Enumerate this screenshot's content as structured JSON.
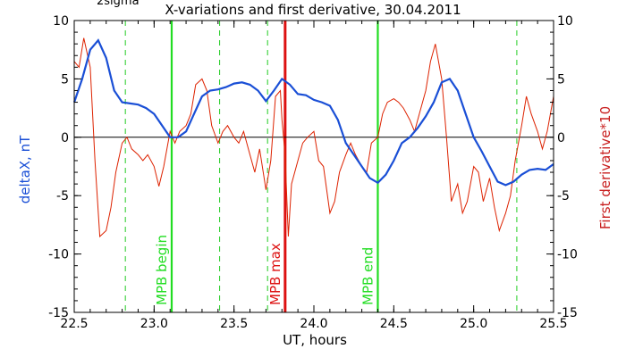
{
  "chart_data": {
    "type": "line",
    "title": "X-variations and first derivative, 30.04.2011",
    "corner_label": "2sigma",
    "xlabel": "UT, hours",
    "ylabel_left": "deltaX, nT",
    "ylabel_right": "First derivative*10",
    "xlim": [
      22.5,
      25.5
    ],
    "ylim": [
      -15,
      10
    ],
    "x_ticks": [
      "22.5",
      "23.0",
      "23.5",
      "24.0",
      "24.5",
      "25.0",
      "25.5"
    ],
    "x_tick_values": [
      22.5,
      23.0,
      23.5,
      24.0,
      24.5,
      25.0,
      25.5
    ],
    "y_ticks_left": [
      "10",
      "5",
      "0",
      "-5",
      "-10",
      "-15"
    ],
    "y_ticks_right": [
      "10",
      "5",
      "0",
      "-5",
      "-10",
      "-15"
    ],
    "y_tick_values": [
      10,
      5,
      0,
      -5,
      -10,
      -15
    ],
    "zero_line": 0,
    "colors": {
      "deltaX": "#1a4fd6",
      "derivative": "#dd2200",
      "mpb_green": "#22dd22",
      "mpb_red": "#dd1111",
      "dashed_green": "#22cc22"
    },
    "dashed_lines": [
      22.82,
      23.41,
      23.71,
      25.27
    ],
    "markers": [
      {
        "x": 23.11,
        "label": "MPB begin",
        "color": "#22dd22"
      },
      {
        "x": 23.82,
        "label": "MPB max",
        "color": "#dd1111"
      },
      {
        "x": 24.4,
        "label": "MPB end",
        "color": "#22dd22"
      }
    ],
    "series": [
      {
        "key": "deltaX",
        "x": [
          22.5,
          22.55,
          22.6,
          22.65,
          22.7,
          22.75,
          22.8,
          22.85,
          22.9,
          22.95,
          23.0,
          23.05,
          23.1,
          23.15,
          23.2,
          23.25,
          23.3,
          23.35,
          23.4,
          23.45,
          23.5,
          23.55,
          23.6,
          23.65,
          23.7,
          23.75,
          23.8,
          23.85,
          23.9,
          23.95,
          24.0,
          24.05,
          24.1,
          24.15,
          24.2,
          24.25,
          24.3,
          24.35,
          24.4,
          24.45,
          24.5,
          24.55,
          24.6,
          24.65,
          24.7,
          24.75,
          24.8,
          24.85,
          24.9,
          24.95,
          25.0,
          25.05,
          25.1,
          25.15,
          25.2,
          25.25,
          25.3,
          25.35,
          25.4,
          25.45,
          25.5
        ],
        "y": [
          3.0,
          5.0,
          7.5,
          8.3,
          6.8,
          4.0,
          3.0,
          2.9,
          2.8,
          2.5,
          2.0,
          1.0,
          0.0,
          0.0,
          0.5,
          2.0,
          3.5,
          4.0,
          4.1,
          4.3,
          4.6,
          4.7,
          4.5,
          4.0,
          3.1,
          4.0,
          5.0,
          4.5,
          3.7,
          3.6,
          3.2,
          3.0,
          2.7,
          1.5,
          -0.5,
          -1.5,
          -2.5,
          -3.5,
          -3.9,
          -3.2,
          -2.0,
          -0.5,
          0.0,
          0.8,
          1.8,
          3.0,
          4.7,
          5.0,
          4.0,
          2.0,
          0.0,
          -1.2,
          -2.5,
          -3.8,
          -4.1,
          -3.8,
          -3.2,
          -2.8,
          -2.7,
          -2.8,
          -2.3
        ]
      },
      {
        "key": "derivative",
        "x": [
          22.5,
          22.53,
          22.56,
          22.6,
          22.63,
          22.66,
          22.7,
          22.73,
          22.76,
          22.8,
          22.83,
          22.86,
          22.9,
          22.93,
          22.96,
          23.0,
          23.03,
          23.06,
          23.1,
          23.13,
          23.16,
          23.2,
          23.23,
          23.26,
          23.3,
          23.33,
          23.36,
          23.4,
          23.43,
          23.46,
          23.5,
          23.53,
          23.56,
          23.6,
          23.63,
          23.66,
          23.7,
          23.73,
          23.76,
          23.79,
          23.8,
          23.82,
          23.84,
          23.86,
          23.9,
          23.93,
          23.96,
          24.0,
          24.03,
          24.06,
          24.1,
          24.13,
          24.16,
          24.2,
          24.23,
          24.26,
          24.3,
          24.33,
          24.36,
          24.4,
          24.43,
          24.46,
          24.5,
          24.53,
          24.56,
          24.6,
          24.63,
          24.66,
          24.7,
          24.73,
          24.76,
          24.8,
          24.83,
          24.86,
          24.9,
          24.93,
          24.96,
          25.0,
          25.03,
          25.06,
          25.1,
          25.13,
          25.16,
          25.2,
          25.23,
          25.26,
          25.3,
          25.33,
          25.36,
          25.4,
          25.43,
          25.46,
          25.5
        ],
        "y": [
          6.5,
          6.0,
          8.5,
          6.0,
          -2.0,
          -8.5,
          -8.0,
          -6.0,
          -3.0,
          -0.5,
          0.0,
          -1.0,
          -1.5,
          -2.0,
          -1.5,
          -2.5,
          -4.2,
          -2.5,
          0.5,
          -0.5,
          0.5,
          1.0,
          2.0,
          4.5,
          5.0,
          4.0,
          1.0,
          -0.5,
          0.5,
          1.0,
          0.0,
          -0.5,
          0.5,
          -1.5,
          -3.0,
          -1.0,
          -4.5,
          -2.0,
          3.5,
          4.0,
          1.5,
          -1.5,
          -8.5,
          -4.0,
          -2.0,
          -0.5,
          0.0,
          0.5,
          -2.0,
          -2.5,
          -6.5,
          -5.5,
          -3.0,
          -1.5,
          -0.5,
          -1.5,
          -2.5,
          -3.0,
          -0.5,
          0.0,
          2.0,
          3.0,
          3.3,
          3.0,
          2.5,
          1.5,
          0.5,
          2.0,
          4.0,
          6.5,
          8.0,
          5.0,
          0.0,
          -5.5,
          -4.0,
          -6.5,
          -5.5,
          -2.5,
          -3.0,
          -5.5,
          -3.5,
          -6.0,
          -8.0,
          -6.5,
          -5.0,
          -2.0,
          1.0,
          3.5,
          2.0,
          0.5,
          -1.0,
          0.5,
          3.5
        ]
      }
    ]
  }
}
